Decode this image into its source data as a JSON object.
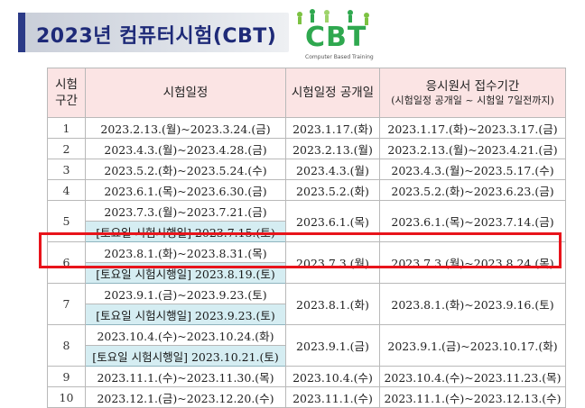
{
  "title": "2023년 컴퓨터시험(CBT)",
  "logo": {
    "text": "CBT",
    "subtitle": "Computer Based Training"
  },
  "headers": {
    "round_line1": "시험",
    "round_line2": "구간",
    "exam_dates": "시험일정",
    "announce": "시험일정 공개일",
    "application_line1": "응시원서 접수기간",
    "application_line2": "(시험일정 공개일 ~ 시험일 7일전까지)"
  },
  "rows": [
    {
      "round": "1",
      "exam": "2023.2.13.(월)~2023.3.24.(금)",
      "announce": "2023.1.17.(화)",
      "apply": "2023.1.17.(화)~2023.3.17.(금)"
    },
    {
      "round": "2",
      "exam": "2023.4.3.(월)~2023.4.28.(금)",
      "announce": "2023.2.13.(월)",
      "apply": "2023.2.13.(월)~2023.4.21.(금)"
    },
    {
      "round": "3",
      "exam": "2023.5.2.(화)~2023.5.24.(수)",
      "announce": "2023.4.3.(월)",
      "apply": "2023.4.3.(월)~2023.5.17.(수)"
    },
    {
      "round": "4",
      "exam": "2023.6.1.(목)~2023.6.30.(금)",
      "announce": "2023.5.2.(화)",
      "apply": "2023.5.2.(화)~2023.6.23.(금)"
    },
    {
      "round": "5",
      "exam": "2023.7.3.(월)~2023.7.21.(금)",
      "saturday": "[토요일 시험시행일] 2023.7.15.(토)",
      "announce": "2023.6.1.(목)",
      "apply": "2023.6.1.(목)~2023.7.14.(금)"
    },
    {
      "round": "6",
      "exam": "2023.8.1.(화)~2023.8.31.(목)",
      "saturday": "[토요일 시험시행일] 2023.8.19.(토)",
      "announce": "2023.7.3.(월)",
      "apply": "2023.7.3.(월)~2023.8.24.(목)"
    },
    {
      "round": "7",
      "exam": "2023.9.1.(금)~2023.9.23.(토)",
      "saturday": "[토요일 시험시행일] 2023.9.23.(토)",
      "announce": "2023.8.1.(화)",
      "apply": "2023.8.1.(화)~2023.9.16.(토)"
    },
    {
      "round": "8",
      "exam": "2023.10.4.(수)~2023.10.24.(화)",
      "saturday": "[토요일 시험시행일] 2023.10.21.(토)",
      "announce": "2023.9.1.(금)",
      "apply": "2023.9.1.(금)~2023.10.17.(화)"
    },
    {
      "round": "9",
      "exam": "2023.11.1.(수)~2023.11.30.(목)",
      "announce": "2023.10.4.(수)",
      "apply": "2023.10.4.(수)~2023.11.23.(목)"
    },
    {
      "round": "10",
      "exam": "2023.12.1.(금)~2023.12.20.(수)",
      "announce": "2023.11.1.(수)",
      "apply": "2023.11.1.(수)~2023.12.13.(수)"
    }
  ]
}
